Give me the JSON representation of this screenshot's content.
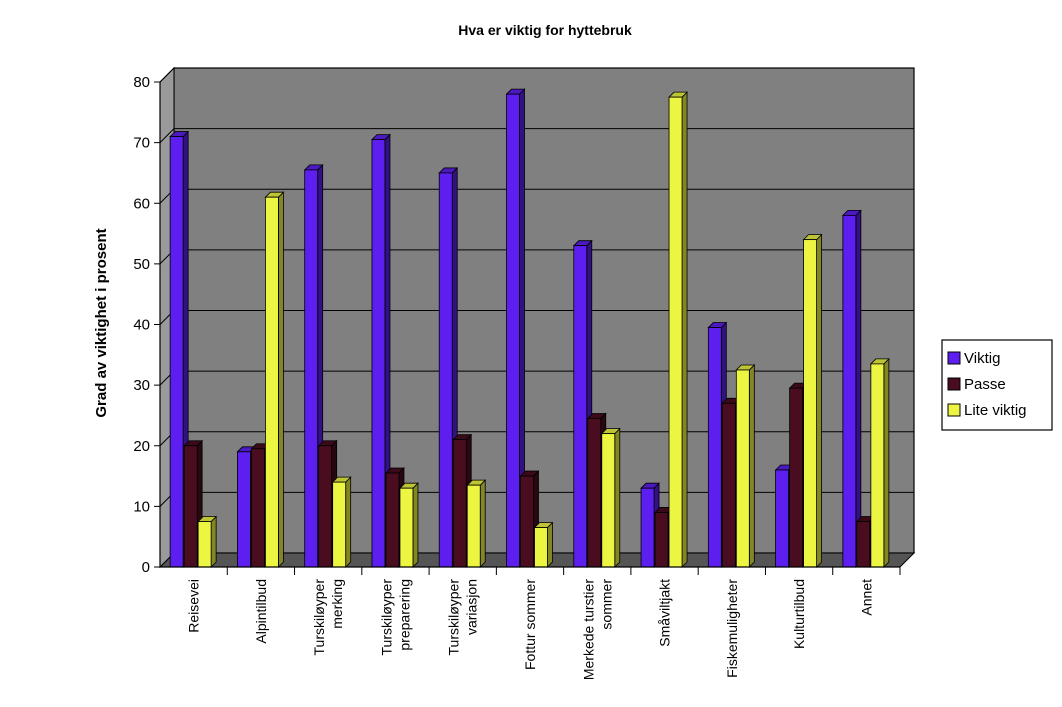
{
  "chart_data": {
    "type": "bar",
    "title": "Hva er viktig for hyttebruk",
    "xlabel": "",
    "ylabel": "Grad av viktighet i prosent",
    "ylim": [
      0,
      80
    ],
    "yticks": [
      0,
      10,
      20,
      30,
      40,
      50,
      60,
      70,
      80
    ],
    "grid": true,
    "legend_position": "right",
    "categories": [
      [
        "Reisevei"
      ],
      [
        "Alpintilbud"
      ],
      [
        "Turskiløyper",
        "merking"
      ],
      [
        "Turskiløyper",
        "preparering"
      ],
      [
        "Turskiløyper",
        "variasjon"
      ],
      [
        "Fottur sommer"
      ],
      [
        "Merkede turstier",
        "sommer"
      ],
      [
        "Småviltjakt"
      ],
      [
        "Fiskemuligheter"
      ],
      [
        "Kulturtilbud"
      ],
      [
        "Annet"
      ]
    ],
    "series": [
      {
        "name": "Viktig",
        "color": "#5c1ff0",
        "values": [
          71,
          19,
          65.5,
          70.5,
          65,
          78,
          53,
          13,
          39.5,
          16,
          58
        ]
      },
      {
        "name": "Passe",
        "color": "#4a0d1f",
        "values": [
          20,
          19.5,
          20,
          15.5,
          21,
          15,
          24.5,
          9,
          27,
          29.5,
          7.5
        ]
      },
      {
        "name": "Lite viktig",
        "color": "#ecf542",
        "values": [
          7.5,
          61,
          14,
          13,
          13.5,
          6.5,
          22,
          77.5,
          32.5,
          54,
          33.5
        ]
      }
    ]
  }
}
